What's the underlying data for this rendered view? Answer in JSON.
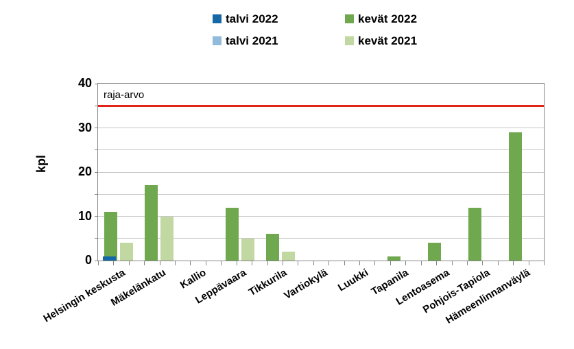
{
  "chart_data": {
    "type": "bar",
    "title": "",
    "ylabel": "kpl",
    "ylim": [
      0,
      40
    ],
    "ytick_labels": [
      0,
      10,
      20,
      30,
      40
    ],
    "gridline_interval": 5,
    "grid": true,
    "legend_position": "top",
    "categories": [
      "Helsingin keskusta",
      "Mäkelänkatu",
      "Kallio",
      "Leppävaara",
      "Tikkurila",
      "Vartiokylä",
      "Luukki",
      "Tapanila",
      "Lentoasema",
      "Pohjois-Tapiola",
      "Hämeenlinnanväylä"
    ],
    "series": [
      {
        "name": "talvi 2022",
        "color": "#1568a5",
        "values": [
          1,
          0,
          0,
          0,
          0,
          0,
          0,
          0,
          0,
          0,
          0
        ]
      },
      {
        "name": "kevät 2022",
        "color": "#70a850",
        "values": [
          11,
          17,
          0,
          12,
          6,
          0,
          0,
          1,
          4,
          12,
          29
        ]
      },
      {
        "name": "talvi 2021",
        "color": "#92bbdb",
        "values": [
          0,
          0,
          0,
          0,
          0,
          0,
          0,
          0,
          0,
          0,
          0
        ]
      },
      {
        "name": "kevät 2021",
        "color": "#c2d8a2",
        "values": [
          4,
          10,
          0,
          5,
          2,
          0,
          0,
          0,
          0,
          0,
          0
        ]
      }
    ],
    "annotation": {
      "label": "raja-arvo",
      "value": 35,
      "color": "#e02418"
    }
  }
}
